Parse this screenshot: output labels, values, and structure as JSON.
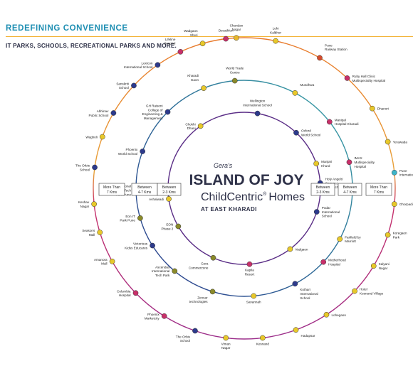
{
  "header": {
    "title": "REDEFINING CONVENIENCE",
    "subtitle": "IT PARKS, SCHOOLS, RECREATIONAL PARKS AND MORE."
  },
  "center": {
    "brand": "Gera's",
    "title": "ISLAND OF JOY",
    "subtitle": "ChildCentric",
    "subtitle_mark": "®",
    "subtitle_end": "Homes",
    "location": "AT EAST KHARADI"
  },
  "rings": {
    "inner": {
      "left_line1": "Between",
      "left_line2": "2-3 Kms",
      "right_line1": "Between",
      "right_line2": "2-3 Kms"
    },
    "middle": {
      "left_line1": "Between",
      "left_line2": "4-7 Kms",
      "right_line1": "Between",
      "right_line2": "4-7 Kms"
    },
    "outer": {
      "left_line1": "More Than",
      "left_line2": "7 Kms",
      "right_line1": "More Than",
      "right_line2": "7 Kms"
    }
  },
  "colors": {
    "inner_ring": "#5a2d86",
    "middle_ring_top": "#2e8f9a",
    "middle_ring_bottom": "#2d3a8c",
    "outer_ring_top": "#e8792b",
    "outer_ring_bottom": "#9b2d8a",
    "header": "#1f8fb3",
    "rule": "#f2b233"
  },
  "places": [
    {
      "ring": "outer",
      "label": "Chandan|Nagar",
      "color": "#e8b82a"
    },
    {
      "ring": "outer",
      "label": "Lohi|Kalbhor",
      "color": "#e8c82a"
    },
    {
      "ring": "outer",
      "label": "Pune|Railway Station",
      "color": "#d64c2c"
    },
    {
      "ring": "outer",
      "label": "Ruby Hall Clinic|Multispeciality Hospital",
      "color": "#c8306a"
    },
    {
      "ring": "outer",
      "label": "Dhanori",
      "color": "#e8c82a"
    },
    {
      "ring": "outer",
      "label": "Yerawada",
      "color": "#e8c82a"
    },
    {
      "ring": "outer",
      "label": "Pune|International Airport",
      "color": "#3db5c8"
    },
    {
      "ring": "outer",
      "label": "Ghorpadi",
      "color": "#e8c82a"
    },
    {
      "ring": "outer",
      "label": "Koregaon|Park",
      "color": "#e8c82a"
    },
    {
      "ring": "outer",
      "label": "Kalyani|Nagar",
      "color": "#e8c82a"
    },
    {
      "ring": "outer",
      "label": "Hotel|Kesnand Village",
      "color": "#e8c82a"
    },
    {
      "ring": "outer",
      "label": "Lohegaon",
      "color": "#e8c82a"
    },
    {
      "ring": "outer",
      "label": "Hadapsar",
      "color": "#e8c82a"
    },
    {
      "ring": "outer",
      "label": "Kesnand",
      "color": "#e8c82a"
    },
    {
      "ring": "outer",
      "label": "Viman|Nagar",
      "color": "#e8c82a"
    },
    {
      "ring": "outer",
      "label": "The Orbis|School",
      "color": "#2d3a8c"
    },
    {
      "ring": "outer",
      "label": "Phoenix|Marketcity",
      "color": "#c8306a"
    },
    {
      "ring": "outer",
      "label": "Columbia|Hospital",
      "color": "#c8306a"
    },
    {
      "ring": "outer",
      "label": "Amanora|Mall",
      "color": "#e8c82a"
    },
    {
      "ring": "outer",
      "label": "Seasons|Mall",
      "color": "#e8c82a"
    },
    {
      "ring": "outer",
      "label": "Keshav|Nagar",
      "color": "#e8c82a"
    },
    {
      "ring": "outer",
      "label": "The Orbis|School",
      "color": "#2d3a8c"
    },
    {
      "ring": "outer",
      "label": "Wagholi",
      "color": "#e8c82a"
    },
    {
      "ring": "outer",
      "label": "Abhinav|Public School",
      "color": "#2d3a8c"
    },
    {
      "ring": "outer",
      "label": "Sanskriti|School",
      "color": "#2d3a8c"
    },
    {
      "ring": "outer",
      "label": "Lexicon|International School",
      "color": "#2d3a8c"
    },
    {
      "ring": "outer",
      "label": "Lifeline|Hospital",
      "color": "#c8306a"
    },
    {
      "ring": "outer",
      "label": "Wadgaon|Sheri",
      "color": "#e8c82a"
    },
    {
      "ring": "outer",
      "label": "Decathlon",
      "color": "#c8306a"
    },
    {
      "ring": "middle",
      "label": "World Trade|Centre",
      "color": "#8a8a2a"
    },
    {
      "ring": "middle",
      "label": "Mundhwa",
      "color": "#e8c82a"
    },
    {
      "ring": "middle",
      "label": "Manipal|Hospital Kharadi",
      "color": "#c8306a"
    },
    {
      "ring": "middle",
      "label": "IMAX|Multispeciality|Hospital",
      "color": "#c8306a"
    },
    {
      "ring": "middle",
      "label": "Fairfield by|Marriott",
      "color": "#e8c82a"
    },
    {
      "ring": "middle",
      "label": "Motherhood|Hospital",
      "color": "#c8306a"
    },
    {
      "ring": "middle",
      "label": "Kothari|International|School",
      "color": "#2d3a8c"
    },
    {
      "ring": "middle",
      "label": "Savannah",
      "color": "#e8c82a"
    },
    {
      "ring": "middle",
      "label": "Zensar|technologies",
      "color": "#8a8a2a"
    },
    {
      "ring": "middle",
      "label": "Ascendas|International|Tech Park",
      "color": "#8a8a2a"
    },
    {
      "ring": "middle",
      "label": "Victorious|Kidss Educares",
      "color": "#2d3a8c"
    },
    {
      "ring": "middle",
      "label": "Eon IT|Park Pune",
      "color": "#8a8a2a"
    },
    {
      "ring": "middle",
      "label": "International|Tech|Park Pune",
      "color": "#8a8a2a"
    },
    {
      "ring": "middle",
      "label": "Phoenix|World School",
      "color": "#2d3a8c"
    },
    {
      "ring": "middle",
      "label": "GH Raisoni|College of|Engineering &|Management",
      "color": "#2d3a8c"
    },
    {
      "ring": "middle",
      "label": "Kharadi|Gaon",
      "color": "#e8c82a"
    },
    {
      "ring": "inner",
      "label": "Wellington|International School",
      "color": "#2d3a8c"
    },
    {
      "ring": "inner",
      "label": "Oxford|World School",
      "color": "#2d3a8c"
    },
    {
      "ring": "inner",
      "label": "Manjari|Khurd",
      "color": "#e8c82a"
    },
    {
      "ring": "inner",
      "label": "Holy Angels'|Convent|High School",
      "color": "#2d3a8c"
    },
    {
      "ring": "inner",
      "label": "Podar|International|School",
      "color": "#2d3a8c"
    },
    {
      "ring": "inner",
      "label": "Vadgaon",
      "color": "#e8c82a"
    },
    {
      "ring": "inner",
      "label": "Kapila|Resort",
      "color": "#c8306a"
    },
    {
      "ring": "inner",
      "label": "Gera|Commerzone",
      "color": "#8a8a2a"
    },
    {
      "ring": "inner",
      "label": "EON|Phase 2",
      "color": "#8a8a2a"
    },
    {
      "ring": "inner",
      "label": "Avhalwadi",
      "color": "#e8c82a"
    },
    {
      "ring": "inner",
      "label": "Chokhi|Dhani",
      "color": "#e8c82a"
    }
  ]
}
